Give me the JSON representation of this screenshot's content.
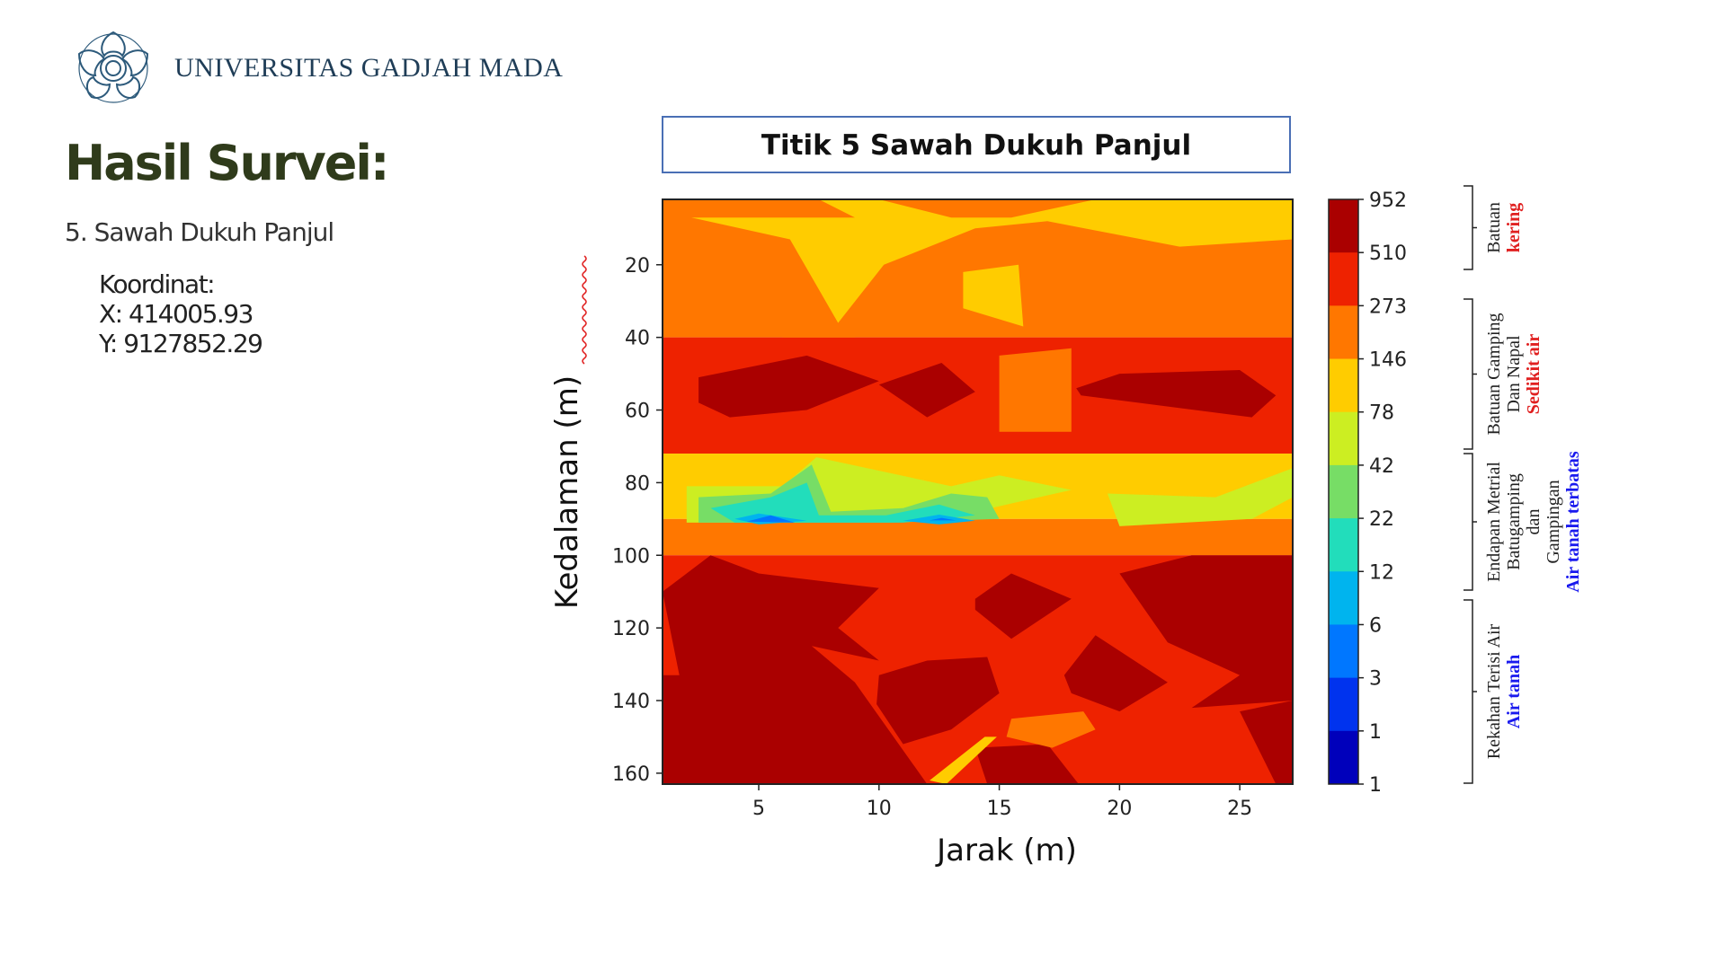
{
  "header": {
    "university_name": "UNIVERSITAS GADJAH MADA",
    "logo_icon": "ugm-seal-icon"
  },
  "slide": {
    "title": "Hasil Survei:",
    "subtitle": "5. Sawah Dukuh Panjul",
    "coord_heading": "Koordinat:",
    "coord_x": "X: 414005.93",
    "coord_y": "Y: 9127852.29"
  },
  "chart_data": {
    "type": "heatmap",
    "title": "Titik 5 Sawah Dukuh Panjul",
    "xlabel": "Jarak (m)",
    "ylabel": "Kedalaman (m)",
    "xlim": [
      1,
      27.2
    ],
    "ylim": [
      163,
      2
    ],
    "x_ticks": [
      5,
      10,
      15,
      20,
      25
    ],
    "y_ticks": [
      20,
      40,
      60,
      80,
      100,
      120,
      140,
      160
    ],
    "colorbar": {
      "tick_labels": [
        "952",
        "510",
        "273",
        "146",
        "78",
        "42",
        "22",
        "12",
        "6",
        "3",
        "1",
        "1"
      ],
      "colors": [
        "#aa0000",
        "#ee2200",
        "#ff7700",
        "#ffcc00",
        "#ccee22",
        "#77dd66",
        "#22ddbb",
        "#00b4ee",
        "#0077ff",
        "#0033ee",
        "#0000bb"
      ]
    },
    "bands": [
      {
        "x1": 1,
        "x2": 27.2,
        "y1": 2,
        "y2": 40,
        "level": 2
      },
      {
        "x1": 1,
        "x2": 27.2,
        "y1": 40,
        "y2": 72,
        "level": 1
      },
      {
        "x1": 1,
        "x2": 27.2,
        "y1": 72,
        "y2": 90,
        "level": 3
      },
      {
        "x1": 1,
        "x2": 27.2,
        "y1": 90,
        "y2": 100,
        "level": 2
      },
      {
        "x1": 1,
        "x2": 27.2,
        "y1": 100,
        "y2": 163,
        "level": 1
      }
    ],
    "regions": [
      {
        "level": 3,
        "points": [
          [
            2.2,
            7
          ],
          [
            9,
            7
          ],
          [
            7.5,
            2
          ],
          [
            10,
            2
          ],
          [
            13,
            7
          ],
          [
            15.5,
            7
          ],
          [
            19,
            2
          ],
          [
            27.2,
            2
          ],
          [
            27.2,
            13
          ],
          [
            22.5,
            15
          ],
          [
            17,
            8
          ],
          [
            14,
            10
          ],
          [
            10.2,
            20
          ],
          [
            8.3,
            36
          ],
          [
            6.3,
            13
          ],
          [
            2.2,
            7
          ]
        ]
      },
      {
        "level": 3,
        "points": [
          [
            13.5,
            22
          ],
          [
            15.8,
            20
          ],
          [
            16,
            37
          ],
          [
            13.5,
            32
          ]
        ]
      },
      {
        "level": 2,
        "points": [
          [
            6,
            36
          ],
          [
            9,
            36
          ],
          [
            9,
            40
          ],
          [
            6,
            40
          ]
        ]
      },
      {
        "level": 0,
        "points": [
          [
            2.5,
            51
          ],
          [
            7,
            45
          ],
          [
            10,
            52
          ],
          [
            7,
            60
          ],
          [
            3.8,
            62
          ],
          [
            2.5,
            58
          ]
        ]
      },
      {
        "level": 0,
        "points": [
          [
            10,
            53
          ],
          [
            12.6,
            47
          ],
          [
            14,
            55
          ],
          [
            12,
            62
          ]
        ]
      },
      {
        "level": 0,
        "points": [
          [
            18.2,
            54
          ],
          [
            20,
            50
          ],
          [
            25,
            49
          ],
          [
            26.5,
            56
          ],
          [
            25.5,
            62
          ],
          [
            18.4,
            56
          ]
        ]
      },
      {
        "level": 2,
        "points": [
          [
            15,
            45
          ],
          [
            18,
            43
          ],
          [
            18,
            66
          ],
          [
            15,
            66
          ]
        ]
      },
      {
        "level": 4,
        "points": [
          [
            2,
            81
          ],
          [
            6,
            81
          ],
          [
            7.4,
            73
          ],
          [
            13,
            81
          ],
          [
            15,
            78
          ],
          [
            18,
            82
          ],
          [
            14,
            88
          ],
          [
            10.3,
            91
          ],
          [
            6,
            91
          ],
          [
            2,
            91
          ]
        ]
      },
      {
        "level": 4,
        "points": [
          [
            19.5,
            83
          ],
          [
            24,
            84
          ],
          [
            27.2,
            76
          ],
          [
            27.2,
            84
          ],
          [
            25.5,
            90
          ],
          [
            20,
            92
          ]
        ]
      },
      {
        "level": 5,
        "points": [
          [
            2.5,
            84
          ],
          [
            5.5,
            83
          ],
          [
            7.2,
            75
          ],
          [
            8,
            88
          ],
          [
            11,
            87
          ],
          [
            13,
            83
          ],
          [
            14.5,
            84
          ],
          [
            15,
            90
          ],
          [
            10.5,
            91
          ],
          [
            6,
            91
          ],
          [
            2.5,
            91
          ]
        ]
      },
      {
        "level": 6,
        "points": [
          [
            3,
            87
          ],
          [
            5.5,
            84
          ],
          [
            7,
            80
          ],
          [
            7.5,
            89
          ],
          [
            10.3,
            89
          ],
          [
            12.5,
            86
          ],
          [
            14,
            89
          ],
          [
            11,
            91
          ],
          [
            4,
            91
          ]
        ]
      },
      {
        "level": 7,
        "points": [
          [
            4,
            90
          ],
          [
            5,
            88.5
          ],
          [
            7,
            90.5
          ],
          [
            5,
            91.5
          ]
        ]
      },
      {
        "level": 7,
        "points": [
          [
            11,
            90.5
          ],
          [
            12.5,
            88.8
          ],
          [
            14,
            90.5
          ],
          [
            12.5,
            91.5
          ]
        ]
      },
      {
        "level": 8,
        "points": [
          [
            4.5,
            90.7
          ],
          [
            5.5,
            89
          ],
          [
            6.5,
            91
          ]
        ]
      },
      {
        "level": 8,
        "points": [
          [
            12.1,
            90.4
          ],
          [
            12.6,
            89.7
          ],
          [
            13.2,
            90.4
          ]
        ]
      },
      {
        "level": 0,
        "points": [
          [
            1,
            110
          ],
          [
            3,
            100
          ],
          [
            5,
            105
          ],
          [
            10,
            109
          ],
          [
            8.3,
            120
          ],
          [
            10,
            129
          ],
          [
            7.2,
            125
          ],
          [
            9,
            135
          ],
          [
            12,
            163
          ],
          [
            1,
            163
          ],
          [
            1,
            133
          ],
          [
            1.7,
            133
          ]
        ]
      },
      {
        "level": 0,
        "points": [
          [
            10,
            133
          ],
          [
            12,
            129
          ],
          [
            14.5,
            128
          ],
          [
            15,
            138
          ],
          [
            13,
            148
          ],
          [
            11,
            152
          ],
          [
            9.9,
            141
          ]
        ]
      },
      {
        "level": 0,
        "points": [
          [
            14,
            112
          ],
          [
            15.5,
            105
          ],
          [
            18,
            112
          ],
          [
            15.5,
            123
          ],
          [
            14,
            115
          ]
        ]
      },
      {
        "level": 0,
        "points": [
          [
            17.7,
            133
          ],
          [
            19,
            122
          ],
          [
            22,
            135
          ],
          [
            20,
            143
          ],
          [
            18,
            138
          ]
        ]
      },
      {
        "level": 0,
        "points": [
          [
            20,
            105
          ],
          [
            23,
            100
          ],
          [
            27.2,
            100
          ],
          [
            27.2,
            140
          ],
          [
            23,
            142
          ],
          [
            25,
            133
          ],
          [
            22,
            124
          ]
        ]
      },
      {
        "level": 0,
        "points": [
          [
            25,
            143
          ],
          [
            27.2,
            140
          ],
          [
            27.2,
            163
          ],
          [
            26.5,
            163
          ]
        ]
      },
      {
        "level": 0,
        "points": [
          [
            14,
            153
          ],
          [
            17,
            152
          ],
          [
            18.3,
            163
          ],
          [
            14.5,
            163
          ]
        ]
      },
      {
        "level": 2,
        "points": [
          [
            15.5,
            145
          ],
          [
            18.5,
            143
          ],
          [
            19,
            148
          ],
          [
            17.2,
            153
          ],
          [
            15.3,
            150
          ]
        ]
      },
      {
        "level": 3,
        "points": [
          [
            12.1,
            162
          ],
          [
            14.4,
            150
          ],
          [
            14.9,
            150
          ],
          [
            12.8,
            163
          ]
        ]
      }
    ]
  },
  "annotations": [
    {
      "line1": "Batuan",
      "line2": "",
      "line3": "kering",
      "color": "#e02020"
    },
    {
      "line1": "Batuan Gamping",
      "line2": "Dan Napal",
      "line3": "Sedikit air",
      "color": "#e02020"
    },
    {
      "line1": "Endapan Metrial",
      "line2": "Batugamping",
      "line3": "dan",
      "line4": "Gampingan",
      "line5": "Air tanah terbatas",
      "color": "#1a1aee"
    },
    {
      "line1": "Rekahan Terisi Air",
      "line2": "",
      "line3": "Air tanah",
      "color": "#1a1aee"
    }
  ]
}
